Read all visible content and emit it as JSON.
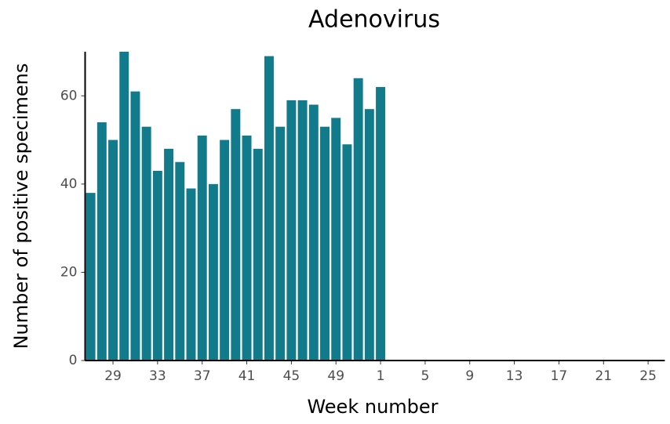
{
  "chart_data": {
    "type": "bar",
    "title": "Adenovirus",
    "x_label": "Week number",
    "y_label": "Number of positive specimens",
    "categories": [
      null,
      null,
      29,
      null,
      null,
      null,
      33,
      null,
      null,
      null,
      37,
      null,
      null,
      null,
      41,
      null,
      null,
      null,
      45,
      null,
      null,
      null,
      49,
      null,
      null,
      null,
      1,
      null,
      null,
      null,
      5,
      null,
      null,
      null,
      9,
      null,
      null,
      null,
      13,
      null,
      null,
      null,
      17,
      null,
      null,
      null,
      21,
      null,
      null,
      null,
      25,
      null
    ],
    "values": [
      38,
      54,
      50,
      70,
      61,
      53,
      43,
      48,
      45,
      39,
      51,
      40,
      50,
      57,
      51,
      48,
      69,
      53,
      59,
      59,
      58,
      53,
      55,
      49,
      64,
      57,
      62,
      null,
      null,
      null,
      null,
      null,
      null,
      null,
      null,
      null,
      null,
      null,
      null,
      null,
      null,
      null,
      null,
      null,
      null,
      null,
      null,
      null,
      null,
      null,
      null,
      null
    ],
    "color": "#117a8b",
    "ylim": [
      0,
      70
    ],
    "yticks": [
      0,
      20,
      40,
      60
    ],
    "grid": false
  }
}
